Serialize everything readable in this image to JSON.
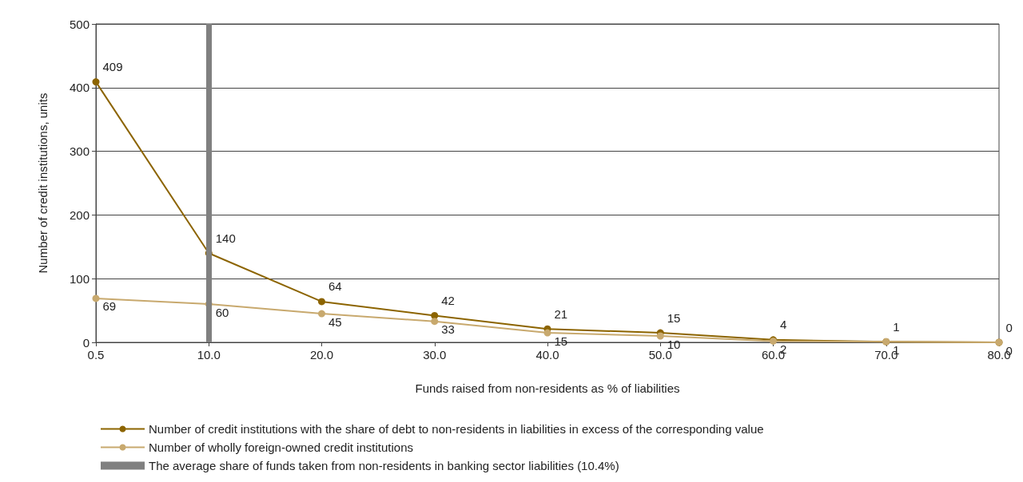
{
  "chart_data": {
    "type": "line",
    "xlabel": "Funds raised from non-residents as % of liabilities",
    "ylabel": "Number of credit institutions, units",
    "categories": [
      "0.5",
      "10.0",
      "20.0",
      "30.0",
      "40.0",
      "50.0",
      "60.0",
      "70.0",
      "80.0"
    ],
    "series": [
      {
        "name": "Number of credit institutions with the share of debt to non-residents in liabilities in excess of the corresponding value",
        "color": "#8c6400",
        "values": [
          409,
          140,
          64,
          42,
          21,
          15,
          4,
          1,
          0
        ]
      },
      {
        "name": "Number of wholly foreign-owned credit institutions",
        "color": "#c8a96e",
        "values": [
          69,
          60,
          45,
          33,
          15,
          10,
          2,
          1,
          0
        ]
      }
    ],
    "ref_lines": [
      {
        "axis": "x",
        "value": "10.0",
        "label": "The average share of funds taken from non-residents in banking sector liabilities (10.4%)",
        "color": "#808080"
      }
    ],
    "ylim": [
      0,
      500
    ],
    "yticks": [
      0,
      100,
      200,
      300,
      400,
      500
    ],
    "grid": "y",
    "legend": "bottom",
    "marker": "circle",
    "line_style": "solid",
    "data_labels": true
  }
}
